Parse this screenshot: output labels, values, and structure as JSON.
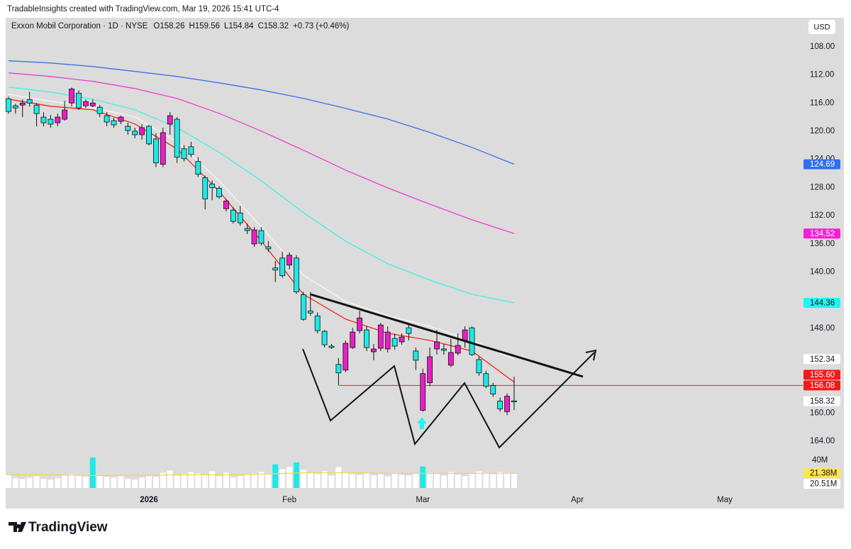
{
  "chart_data": {
    "type": "candlestick",
    "credit": "TradableInsights created with TradingView.com, Mar 19, 2026 15:41 UTC-4",
    "title": "Exxon Mobil Corporation · 1D · NYSE",
    "legend_values": [
      "O158.26",
      "H159.56",
      "L154.84",
      "C158.32",
      "+0.73 (+0.46%)"
    ],
    "currency": "USD",
    "brand": "TradingView",
    "inverted": true,
    "xlim": [
      -0.4,
      112.7
    ],
    "ylim": [
      104.2,
      165.8
    ],
    "xticks": [
      {
        "value": 20,
        "label": "2026"
      },
      {
        "value": 40,
        "label": "Feb"
      },
      {
        "value": 59,
        "label": "Mar"
      },
      {
        "value": 81,
        "label": "Apr"
      },
      {
        "value": 102,
        "label": "May"
      }
    ],
    "yticks": [
      {
        "value": 108,
        "label": "108.00"
      },
      {
        "value": 112,
        "label": "112.00"
      },
      {
        "value": 116,
        "label": "116.00"
      },
      {
        "value": 120,
        "label": "120.00"
      },
      {
        "value": 124,
        "label": "124.00"
      },
      {
        "value": 128,
        "label": "128.00"
      },
      {
        "value": 132,
        "label": "132.00"
      },
      {
        "value": 136,
        "label": "136.00"
      },
      {
        "value": 140,
        "label": "140.00"
      },
      {
        "value": 148,
        "label": "148.00"
      },
      {
        "value": 160,
        "label": "160.00"
      },
      {
        "value": 164,
        "label": "164.00"
      }
    ],
    "up_color": "#1fe8e8",
    "down_color": "#e91fc6",
    "candles": {
      "x": [
        0,
        1,
        2,
        3,
        4,
        5,
        6,
        7,
        8,
        9,
        10,
        11,
        12,
        13,
        14,
        15,
        16,
        17,
        18,
        19,
        20,
        21,
        22,
        23,
        24,
        25,
        26,
        27,
        28,
        29,
        30,
        31,
        32,
        33,
        34,
        35,
        36,
        37,
        38,
        39,
        40,
        41,
        42,
        43,
        44,
        45,
        46,
        47,
        48,
        49,
        50,
        51,
        52,
        53,
        54,
        55,
        56,
        57,
        58,
        59,
        60,
        61,
        62,
        63,
        64,
        65,
        66,
        67,
        68,
        69,
        70,
        71,
        72
      ],
      "open": [
        115.4,
        116.4,
        116.3,
        115.5,
        116.3,
        118.0,
        118.3,
        118.8,
        118.3,
        116.0,
        114.6,
        116.4,
        116.4,
        116.6,
        117.8,
        118.5,
        118.6,
        119.3,
        120.0,
        120.5,
        119.3,
        121.1,
        124.7,
        119.0,
        118.3,
        122.5,
        122.2,
        124.3,
        126.6,
        127.5,
        128.1,
        131.0,
        131.2,
        131.6,
        133.8,
        136.0,
        134.1,
        136.4,
        139.4,
        138.0,
        139.0,
        138.0,
        143.2,
        145.5,
        146.2,
        148.4,
        150.5,
        153.1,
        153.9,
        150.7,
        148.3,
        148.2,
        151.3,
        150.8,
        150.9,
        149.4,
        149.9,
        147.9,
        151.2,
        159.6,
        155.7,
        150.9,
        150.9,
        153.2,
        151.5,
        149.7,
        147.9,
        152.4,
        154.4,
        156.1,
        158.3,
        159.8,
        158.26
      ],
      "high": [
        117.5,
        117.5,
        118.0,
        116.5,
        119.3,
        119.3,
        119.5,
        119.3,
        118.5,
        116.5,
        117.0,
        116.7,
        116.6,
        118.0,
        119.3,
        119.5,
        119.0,
        120.5,
        121.0,
        121.2,
        122.0,
        125.1,
        125.1,
        120.5,
        124.5,
        124.3,
        123.7,
        126.5,
        131.1,
        129.8,
        129.6,
        131.4,
        133.1,
        133.4,
        134.6,
        136.4,
        136.2,
        137.1,
        141.4,
        140.8,
        139.6,
        143.1,
        146.9,
        146.2,
        148.7,
        150.7,
        150.9,
        156.0,
        154.2,
        150.9,
        148.7,
        151.2,
        152.5,
        151.2,
        151.4,
        151.0,
        150.3,
        149.7,
        153.9,
        159.8,
        156.2,
        151.7,
        151.7,
        153.5,
        151.8,
        150.7,
        151.9,
        154.7,
        156.5,
        157.7,
        159.8,
        160.3,
        159.56
      ],
      "low": [
        115.1,
        116.1,
        115.5,
        114.4,
        116.0,
        117.3,
        117.7,
        117.5,
        115.7,
        113.8,
        114.2,
        115.5,
        115.5,
        116.3,
        117.3,
        118.1,
        117.8,
        118.8,
        119.5,
        119.0,
        119.1,
        120.3,
        119.5,
        117.3,
        118.0,
        122.0,
        121.5,
        123.7,
        126.3,
        127.0,
        127.8,
        129.6,
        130.8,
        130.6,
        133.1,
        133.6,
        133.6,
        135.6,
        138.4,
        137.1,
        137.2,
        137.6,
        142.8,
        142.8,
        145.7,
        148.2,
        150.2,
        152.2,
        149.7,
        147.9,
        145.5,
        147.7,
        150.2,
        147.2,
        147.7,
        148.7,
        148.7,
        147.2,
        150.7,
        153.7,
        150.7,
        148.2,
        150.2,
        149.5,
        148.7,
        147.7,
        147.7,
        152.0,
        154.0,
        155.7,
        157.8,
        157.2,
        154.84
      ],
      "close": [
        117.2,
        116.7,
        116.0,
        116.0,
        117.5,
        118.8,
        119.0,
        118.0,
        117.0,
        114.0,
        116.7,
        115.8,
        116.0,
        117.5,
        118.7,
        119.1,
        118.0,
        119.9,
        120.5,
        119.5,
        121.8,
        124.5,
        120.2,
        117.8,
        123.7,
        123.9,
        123.3,
        126.1,
        129.6,
        128.0,
        129.3,
        129.9,
        132.8,
        133.0,
        134.1,
        134.0,
        135.9,
        136.7,
        139.7,
        140.5,
        137.6,
        142.8,
        146.7,
        145.8,
        148.3,
        150.3,
        150.7,
        154.3,
        150.1,
        148.5,
        146.5,
        150.7,
        150.9,
        147.5,
        148.5,
        150.5,
        149.2,
        148.7,
        152.5,
        154.4,
        152.0,
        149.9,
        151.1,
        151.4,
        150.4,
        148.2,
        151.7,
        154.3,
        156.2,
        157.3,
        159.4,
        157.6,
        158.32
      ]
    },
    "series": [
      {
        "color": "#3f6fe8",
        "x": [
          0,
          6,
          12,
          18,
          24,
          30,
          36,
          42,
          48,
          54,
          60,
          66,
          72
        ],
        "values": [
          110.01,
          110.32,
          110.82,
          111.52,
          112.23,
          113.14,
          114.14,
          115.35,
          116.76,
          118.27,
          120.18,
          122.3,
          124.69
        ]
      },
      {
        "color": "#f23bd0",
        "x": [
          0,
          6,
          12,
          18,
          24,
          30,
          36,
          42,
          48,
          54,
          60,
          66,
          72
        ],
        "values": [
          111.73,
          112.23,
          112.93,
          113.94,
          115.35,
          117.47,
          119.98,
          122.7,
          125.52,
          128.04,
          130.36,
          132.57,
          134.52
        ]
      },
      {
        "color": "#3ff2e6",
        "x": [
          0,
          6,
          12,
          18,
          24,
          30,
          36,
          42,
          48,
          54,
          60,
          66,
          72
        ],
        "values": [
          113.74,
          114.44,
          115.45,
          116.96,
          119.48,
          123.0,
          127.03,
          131.56,
          135.59,
          138.81,
          141.13,
          143.14,
          144.36
        ]
      },
      {
        "color": "#f6f6f6",
        "x": [
          0,
          6,
          12,
          18,
          24,
          30,
          36,
          42,
          48,
          54,
          60,
          66,
          72
        ],
        "values": [
          114.75,
          115.75,
          116.66,
          117.97,
          121.49,
          127.03,
          133.58,
          140.43,
          144.15,
          146.17,
          147.68,
          149.69,
          152.34
        ]
      },
      {
        "color": "#f2251a",
        "x": [
          0,
          6,
          12,
          18,
          24,
          30,
          36,
          42,
          48,
          54,
          60,
          66,
          72
        ],
        "values": [
          115.45,
          116.46,
          116.96,
          118.98,
          122.5,
          128.54,
          135.59,
          143.14,
          146.67,
          148.68,
          149.69,
          151.2,
          155.6
        ]
      }
    ],
    "hline": {
      "value": 156.08,
      "x_start": 47,
      "color": "#f21a1a"
    },
    "price_tags": [
      {
        "value": 158.32,
        "color": "#ffffff",
        "text_color": "#131722"
      },
      {
        "value": 156.08,
        "color": "#f21a1a",
        "text_color": "#ffffff"
      },
      {
        "value": 152.34,
        "color": "#ffffff",
        "text_color": "#131722"
      },
      {
        "value": 155.6,
        "label": "155.60",
        "color": "#f21a1a",
        "text_color": "#ffffff"
      },
      {
        "value": 144.36,
        "color": "#22f4f4",
        "text_color": "#131722"
      },
      {
        "value": 134.52,
        "color": "#f51fd6",
        "text_color": "#ffffff"
      },
      {
        "value": 124.69,
        "color": "#2f6ff0",
        "text_color": "#ffffff"
      }
    ],
    "volume": {
      "vlim": [
        0,
        48
      ],
      "vticks": [
        {
          "value": 40,
          "label": "40M"
        }
      ],
      "values": [
        18,
        14,
        13,
        15,
        17,
        13,
        12,
        14,
        18,
        20,
        19,
        16,
        44,
        18,
        16,
        15,
        17,
        13,
        12,
        15,
        17,
        16,
        22,
        25,
        18,
        20,
        23,
        21,
        19,
        24,
        17,
        22,
        15,
        17,
        19,
        21,
        23,
        20,
        34,
        27,
        30,
        37,
        26,
        22,
        20,
        24,
        18,
        30,
        22,
        20,
        19,
        21,
        18,
        20,
        17,
        22,
        19,
        18,
        21,
        31,
        22,
        20,
        18,
        23,
        19,
        17,
        21,
        24,
        22,
        20,
        23,
        22,
        20.51
      ],
      "colors": [
        "#fff",
        "#fff",
        "#fff",
        "#fff",
        "#fff",
        "#fff",
        "#fff",
        "#fff",
        "#fff",
        "#fff",
        "#fff",
        "#fff",
        "#1fe8e8",
        "#fff",
        "#fff",
        "#fff",
        "#fff",
        "#fff",
        "#fff",
        "#fff",
        "#fff",
        "#fff",
        "#fff",
        "#fff",
        "#fff",
        "#fff",
        "#fff",
        "#fff",
        "#fff",
        "#fff",
        "#fff",
        "#fff",
        "#fff",
        "#fff",
        "#fff",
        "#fff",
        "#fff",
        "#fff",
        "#1fe8e8",
        "#fff",
        "#fff",
        "#1fe8e8",
        "#fff",
        "#fff",
        "#fff",
        "#fff",
        "#fff",
        "#fff",
        "#fff",
        "#fff",
        "#fff",
        "#fff",
        "#fff",
        "#fff",
        "#fff",
        "#fff",
        "#fff",
        "#fff",
        "#fff",
        "#1fe8e8",
        "#fff",
        "#fff",
        "#fff",
        "#fff",
        "#fff",
        "#fff",
        "#fff",
        "#fff",
        "#fff",
        "#fff",
        "#fff",
        "#fff",
        "#fff"
      ],
      "ma": {
        "color": "#f2d64b",
        "x": [
          0,
          6,
          12,
          18,
          24,
          30,
          36,
          42,
          48,
          54,
          60,
          66,
          72
        ],
        "values": [
          19,
          19,
          18,
          18,
          19,
          19,
          20,
          22,
          22,
          21,
          21,
          21,
          21.38
        ]
      },
      "tags": [
        {
          "value": 21.38,
          "label": "21.38M",
          "color": "#fde64a"
        },
        {
          "value": 20.51,
          "label": "20.51M",
          "color": "#ffffff"
        }
      ]
    }
  }
}
